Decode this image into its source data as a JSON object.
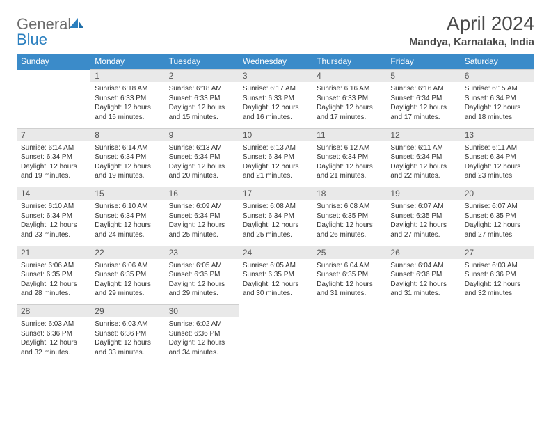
{
  "brand": {
    "text1": "General",
    "text2": "Blue",
    "color_gray": "#6b6b6b",
    "color_blue": "#2a7fbf"
  },
  "title": "April 2024",
  "location": "Mandya, Karnataka, India",
  "header_bg": "#3b8bc9",
  "daynum_bg": "#e9e9e9",
  "days": [
    "Sunday",
    "Monday",
    "Tuesday",
    "Wednesday",
    "Thursday",
    "Friday",
    "Saturday"
  ],
  "weeks": [
    [
      null,
      {
        "n": "1",
        "sr": "6:18 AM",
        "ss": "6:33 PM",
        "dl": "12 hours and 15 minutes."
      },
      {
        "n": "2",
        "sr": "6:18 AM",
        "ss": "6:33 PM",
        "dl": "12 hours and 15 minutes."
      },
      {
        "n": "3",
        "sr": "6:17 AM",
        "ss": "6:33 PM",
        "dl": "12 hours and 16 minutes."
      },
      {
        "n": "4",
        "sr": "6:16 AM",
        "ss": "6:33 PM",
        "dl": "12 hours and 17 minutes."
      },
      {
        "n": "5",
        "sr": "6:16 AM",
        "ss": "6:34 PM",
        "dl": "12 hours and 17 minutes."
      },
      {
        "n": "6",
        "sr": "6:15 AM",
        "ss": "6:34 PM",
        "dl": "12 hours and 18 minutes."
      }
    ],
    [
      {
        "n": "7",
        "sr": "6:14 AM",
        "ss": "6:34 PM",
        "dl": "12 hours and 19 minutes."
      },
      {
        "n": "8",
        "sr": "6:14 AM",
        "ss": "6:34 PM",
        "dl": "12 hours and 19 minutes."
      },
      {
        "n": "9",
        "sr": "6:13 AM",
        "ss": "6:34 PM",
        "dl": "12 hours and 20 minutes."
      },
      {
        "n": "10",
        "sr": "6:13 AM",
        "ss": "6:34 PM",
        "dl": "12 hours and 21 minutes."
      },
      {
        "n": "11",
        "sr": "6:12 AM",
        "ss": "6:34 PM",
        "dl": "12 hours and 21 minutes."
      },
      {
        "n": "12",
        "sr": "6:11 AM",
        "ss": "6:34 PM",
        "dl": "12 hours and 22 minutes."
      },
      {
        "n": "13",
        "sr": "6:11 AM",
        "ss": "6:34 PM",
        "dl": "12 hours and 23 minutes."
      }
    ],
    [
      {
        "n": "14",
        "sr": "6:10 AM",
        "ss": "6:34 PM",
        "dl": "12 hours and 23 minutes."
      },
      {
        "n": "15",
        "sr": "6:10 AM",
        "ss": "6:34 PM",
        "dl": "12 hours and 24 minutes."
      },
      {
        "n": "16",
        "sr": "6:09 AM",
        "ss": "6:34 PM",
        "dl": "12 hours and 25 minutes."
      },
      {
        "n": "17",
        "sr": "6:08 AM",
        "ss": "6:34 PM",
        "dl": "12 hours and 25 minutes."
      },
      {
        "n": "18",
        "sr": "6:08 AM",
        "ss": "6:35 PM",
        "dl": "12 hours and 26 minutes."
      },
      {
        "n": "19",
        "sr": "6:07 AM",
        "ss": "6:35 PM",
        "dl": "12 hours and 27 minutes."
      },
      {
        "n": "20",
        "sr": "6:07 AM",
        "ss": "6:35 PM",
        "dl": "12 hours and 27 minutes."
      }
    ],
    [
      {
        "n": "21",
        "sr": "6:06 AM",
        "ss": "6:35 PM",
        "dl": "12 hours and 28 minutes."
      },
      {
        "n": "22",
        "sr": "6:06 AM",
        "ss": "6:35 PM",
        "dl": "12 hours and 29 minutes."
      },
      {
        "n": "23",
        "sr": "6:05 AM",
        "ss": "6:35 PM",
        "dl": "12 hours and 29 minutes."
      },
      {
        "n": "24",
        "sr": "6:05 AM",
        "ss": "6:35 PM",
        "dl": "12 hours and 30 minutes."
      },
      {
        "n": "25",
        "sr": "6:04 AM",
        "ss": "6:35 PM",
        "dl": "12 hours and 31 minutes."
      },
      {
        "n": "26",
        "sr": "6:04 AM",
        "ss": "6:36 PM",
        "dl": "12 hours and 31 minutes."
      },
      {
        "n": "27",
        "sr": "6:03 AM",
        "ss": "6:36 PM",
        "dl": "12 hours and 32 minutes."
      }
    ],
    [
      {
        "n": "28",
        "sr": "6:03 AM",
        "ss": "6:36 PM",
        "dl": "12 hours and 32 minutes."
      },
      {
        "n": "29",
        "sr": "6:03 AM",
        "ss": "6:36 PM",
        "dl": "12 hours and 33 minutes."
      },
      {
        "n": "30",
        "sr": "6:02 AM",
        "ss": "6:36 PM",
        "dl": "12 hours and 34 minutes."
      },
      null,
      null,
      null,
      null
    ]
  ],
  "labels": {
    "sunrise": "Sunrise:",
    "sunset": "Sunset:",
    "daylight": "Daylight:"
  }
}
